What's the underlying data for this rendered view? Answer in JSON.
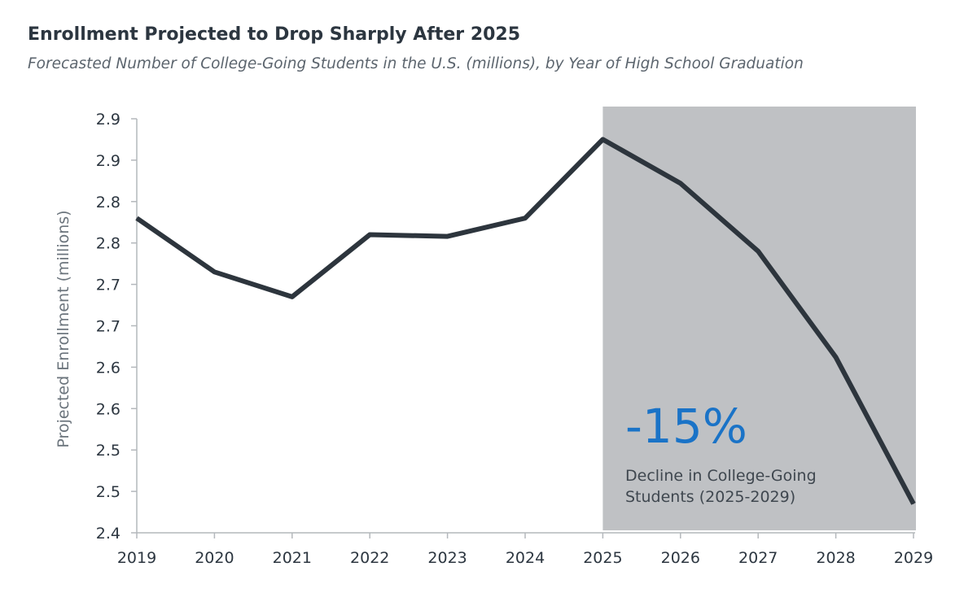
{
  "header": {
    "title": "Enrollment Projected to Drop Sharply After 2025",
    "subtitle": "Forecasted Number of College-Going Students in the U.S. (millions), by Year of High School Graduation"
  },
  "colors": {
    "line": "#2d353d",
    "shade": "#bfc1c4",
    "accent": "#1a73c7",
    "axis": "#b4b8bc"
  },
  "chart_data": {
    "type": "line",
    "title": "Enrollment Projected to Drop Sharply After 2025",
    "subtitle": "Forecasted Number of College-Going Students in the U.S. (millions), by Year of High School Graduation",
    "xlabel": "",
    "ylabel": "Projected Enrollment (millions)",
    "ylim": [
      2.4,
      2.9
    ],
    "y_tick_labels": [
      "2.9",
      "2.9",
      "2.8",
      "2.8",
      "2.7",
      "2.7",
      "2.6",
      "2.6",
      "2.5",
      "2.5",
      "2.4"
    ],
    "x": [
      "2019",
      "2020",
      "2021",
      "2022",
      "2023",
      "2024",
      "2025",
      "2026",
      "2027",
      "2028",
      "2029"
    ],
    "series": [
      {
        "values": [
          2.78,
          2.715,
          2.685,
          2.76,
          2.758,
          2.78,
          2.875,
          2.822,
          2.74,
          2.612,
          2.435
        ]
      }
    ],
    "highlight_range": [
      "2025",
      "2029"
    ],
    "grid": false,
    "annotation": {
      "value": "-15%",
      "label_lines": [
        "Decline in College-Going",
        "Students (2025-2029)"
      ]
    }
  }
}
